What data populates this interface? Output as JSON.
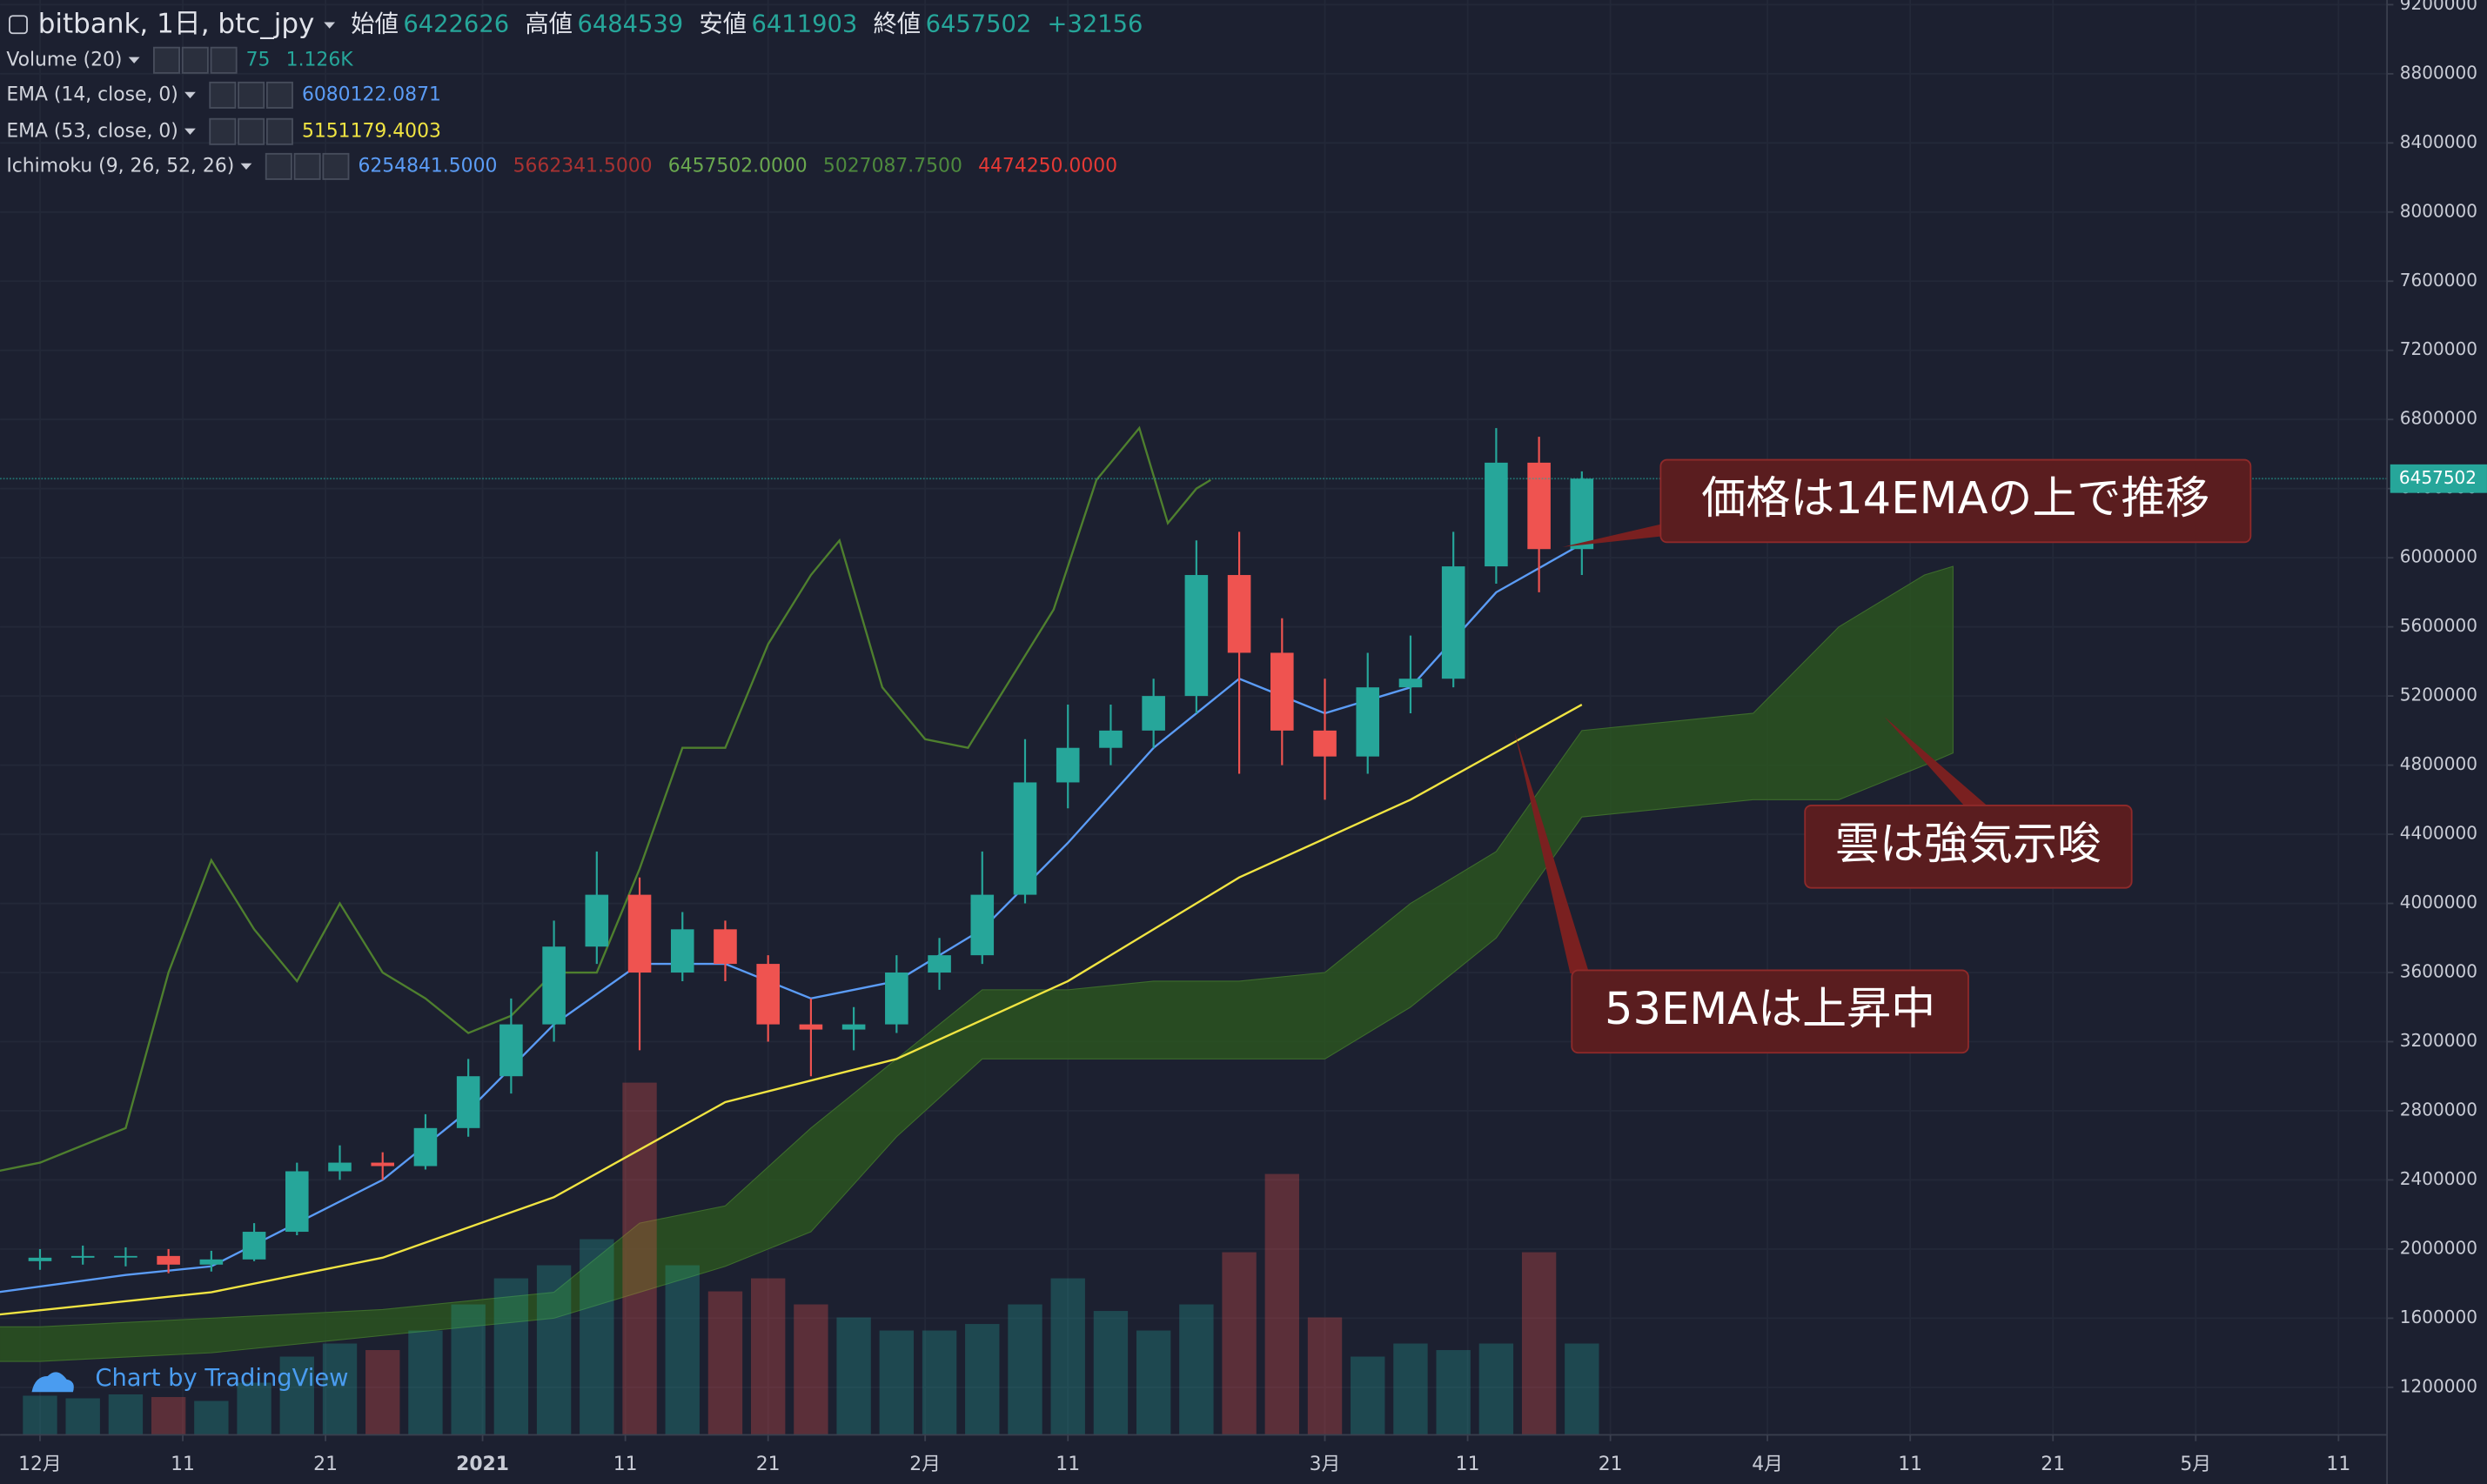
{
  "chart_data": {
    "type": "candlestick",
    "title": "bitbank, 1日, btc_jpy",
    "header": {
      "open_label": "始値",
      "open": 6422626,
      "high_label": "高値",
      "high": 6484539,
      "low_label": "安値",
      "low": 6411903,
      "close_label": "終値",
      "close": 6457502,
      "change": {
        "value": 32156,
        "label": "+32156"
      }
    },
    "up_color": "#26a69a",
    "down_color": "#ef5350",
    "x": [
      0,
      3,
      6,
      9,
      12,
      15,
      18,
      21,
      24,
      27,
      30,
      33,
      36,
      39,
      42,
      45,
      48,
      51,
      54,
      57,
      60,
      63,
      66,
      69,
      72,
      75,
      78,
      81,
      84,
      87,
      90,
      93,
      96,
      99,
      102,
      105,
      108
    ],
    "open": [
      1930000,
      1950000,
      1960000,
      1960000,
      1910000,
      1940000,
      2100000,
      2450000,
      2500000,
      2480000,
      2700000,
      3000000,
      3300000,
      3750000,
      4050000,
      3600000,
      3850000,
      3650000,
      3300000,
      3270000,
      3300000,
      3600000,
      3700000,
      4050000,
      4700000,
      4900000,
      5000000,
      5200000,
      5900000,
      5450000,
      5000000,
      4850000,
      5250000,
      5300000,
      5950000,
      6550000,
      6050000
    ],
    "high": [
      2000000,
      2020000,
      2010000,
      2000000,
      1990000,
      2150000,
      2500000,
      2600000,
      2560000,
      2780000,
      3100000,
      3450000,
      3900000,
      4300000,
      4150000,
      3950000,
      3900000,
      3700000,
      3450000,
      3400000,
      3700000,
      3800000,
      4300000,
      4950000,
      5150000,
      5150000,
      5300000,
      6100000,
      6150000,
      5650000,
      5300000,
      5450000,
      5550000,
      6150000,
      6750000,
      6700000,
      6500000
    ],
    "low": [
      1880000,
      1910000,
      1900000,
      1860000,
      1870000,
      1930000,
      2080000,
      2400000,
      2400000,
      2460000,
      2650000,
      2900000,
      3200000,
      3650000,
      3150000,
      3550000,
      3550000,
      3200000,
      3000000,
      3150000,
      3250000,
      3500000,
      3650000,
      4000000,
      4550000,
      4800000,
      4900000,
      5100000,
      4750000,
      4800000,
      4600000,
      4750000,
      5100000,
      5250000,
      5850000,
      5800000,
      5900000
    ],
    "close": [
      1950000,
      1960000,
      1960000,
      1910000,
      1940000,
      2100000,
      2450000,
      2500000,
      2480000,
      2700000,
      3000000,
      3300000,
      3750000,
      4050000,
      3600000,
      3850000,
      3650000,
      3300000,
      3270000,
      3300000,
      3600000,
      3700000,
      4050000,
      4700000,
      4900000,
      5000000,
      5200000,
      5900000,
      5450000,
      5000000,
      4850000,
      5250000,
      5300000,
      5950000,
      6550000,
      6050000,
      6457502
    ],
    "last_price": 6457502,
    "xlim": [
      -2.8,
      164.4
    ],
    "xticks": [
      {
        "value": 0,
        "label": "12月"
      },
      {
        "value": 10,
        "label": "11"
      },
      {
        "value": 20,
        "label": "21"
      },
      {
        "value": 31,
        "label": "2021"
      },
      {
        "value": 41,
        "label": "11"
      },
      {
        "value": 51,
        "label": "21"
      },
      {
        "value": 62,
        "label": "2月"
      },
      {
        "value": 72,
        "label": "11"
      },
      {
        "value": 90,
        "label": "3月"
      },
      {
        "value": 100,
        "label": "11"
      },
      {
        "value": 110,
        "label": "21"
      },
      {
        "value": 121,
        "label": "4月"
      },
      {
        "value": 131,
        "label": "11"
      },
      {
        "value": 141,
        "label": "21"
      },
      {
        "value": 151,
        "label": "5月"
      },
      {
        "value": 161,
        "label": "11"
      }
    ],
    "ylim": [
      925000,
      9227000
    ],
    "yticks": [
      1200000,
      1600000,
      2000000,
      2400000,
      2800000,
      3200000,
      3600000,
      4000000,
      4400000,
      4800000,
      5200000,
      5600000,
      6000000,
      6400000,
      6800000,
      7200000,
      7600000,
      8000000,
      8400000,
      8800000,
      9200000
    ],
    "volume": {
      "name": "Volume (20)",
      "readouts": [
        75,
        {
          "value": 1126,
          "label": "1.126K"
        }
      ],
      "readout_color": "#26a69a",
      "ylim": [
        0,
        11000
      ],
      "values": [
        300,
        280,
        310,
        290,
        260,
        400,
        600,
        700,
        650,
        800,
        1000,
        1200,
        1300,
        1500,
        2700,
        1300,
        1100,
        1200,
        1000,
        900,
        800,
        800,
        850,
        1000,
        1200,
        950,
        800,
        1000,
        1400,
        2000,
        900,
        600,
        700,
        650,
        700,
        1400,
        700
      ]
    },
    "ema_fast": {
      "name": "EMA (14, close, 0)",
      "readouts": [
        6080122.0871
      ],
      "color": "#5b9cf6",
      "x": [
        -3,
        6,
        12,
        18,
        24,
        30,
        36,
        42,
        48,
        54,
        60,
        66,
        72,
        78,
        84,
        90,
        96,
        102,
        108
      ],
      "values": [
        1750000,
        1850000,
        1900000,
        2150000,
        2400000,
        2800000,
        3300000,
        3650000,
        3650000,
        3450000,
        3550000,
        3850000,
        4350000,
        4900000,
        5300000,
        5100000,
        5250000,
        5800000,
        6080000
      ]
    },
    "ema_slow": {
      "name": "EMA (53, close, 0)",
      "readouts": [
        5151179.4003
      ],
      "color": "#f0e442",
      "x": [
        -3,
        12,
        24,
        36,
        48,
        60,
        72,
        84,
        96,
        108
      ],
      "values": [
        1620000,
        1750000,
        1950000,
        2300000,
        2850000,
        3100000,
        3550000,
        4150000,
        4600000,
        5150000
      ]
    },
    "ichimoku": {
      "name": "Ichimoku (9, 26, 52, 26)",
      "readouts": [
        {
          "value": 6254841.5,
          "label": "6254841.5000"
        },
        {
          "value": 5662341.5,
          "label": "5662341.5000"
        },
        {
          "value": 6457502,
          "label": "6457502.0000"
        },
        {
          "value": 5027087.75,
          "label": "5027087.7500"
        },
        {
          "value": 4474250,
          "label": "4474250.0000"
        }
      ],
      "readout_colors": [
        "#5b9cf6",
        "#a83232",
        "#6aa84f",
        "#4e8a3e",
        "#e53935"
      ],
      "lagging": {
        "color": "#4e7f2e",
        "x": [
          -3,
          0,
          6,
          9,
          12,
          15,
          18,
          21,
          24,
          27,
          30,
          33,
          36,
          39,
          42,
          45,
          48,
          51,
          54,
          56,
          59,
          62,
          65,
          68,
          71,
          74,
          77,
          79,
          81,
          82
        ],
        "values": [
          2450000,
          2500000,
          2700000,
          3600000,
          4250000,
          3850000,
          3550000,
          4000000,
          3600000,
          3450000,
          3250000,
          3350000,
          3600000,
          3600000,
          4200000,
          4900000,
          4900000,
          5500000,
          5900000,
          6100000,
          5250000,
          4950000,
          4900000,
          5300000,
          5700000,
          6450000,
          6750000,
          6200000,
          6400000,
          6450000
        ]
      },
      "cloud": {
        "color": "#2c5a1e",
        "x": [
          -3,
          0,
          12,
          24,
          36,
          42,
          48,
          54,
          60,
          66,
          72,
          78,
          84,
          90,
          96,
          102,
          108,
          114,
          120,
          126,
          132,
          134
        ],
        "span_a": [
          1550000,
          1550000,
          1600000,
          1650000,
          1750000,
          2150000,
          2250000,
          2700000,
          3100000,
          3500000,
          3500000,
          3550000,
          3550000,
          3600000,
          4000000,
          4300000,
          5000000,
          5050000,
          5100000,
          5600000,
          5900000,
          5950000
        ],
        "span_b": [
          1350000,
          1350000,
          1400000,
          1500000,
          1600000,
          1750000,
          1900000,
          2100000,
          2650000,
          3100000,
          3100000,
          3100000,
          3100000,
          3100000,
          3400000,
          3800000,
          4500000,
          4550000,
          4600000,
          4600000,
          4800000,
          4870000
        ]
      }
    },
    "annotations": [
      "価格は14EMAの上で推移",
      "雲は強気示唆",
      "53EMAは上昇中"
    ],
    "watermark": "Chart by TradingView"
  }
}
